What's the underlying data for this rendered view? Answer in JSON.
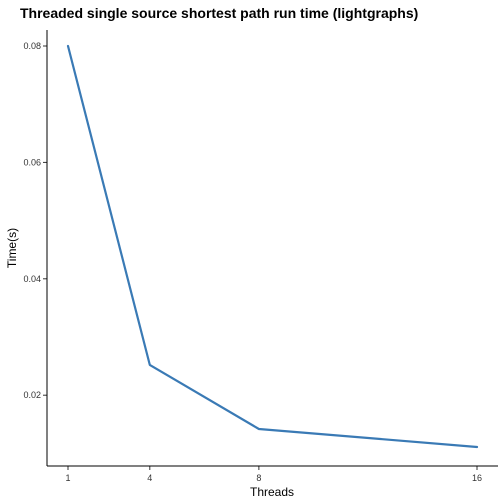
{
  "chart_data": {
    "type": "line",
    "title": "Threaded single source shortest path run time (lightgraphs)",
    "xlabel": "Threads",
    "ylabel": "Time(s)",
    "x": [
      1,
      4,
      8,
      16
    ],
    "x_ticks": [
      1,
      4,
      8,
      16
    ],
    "y_ticks": [
      0.02,
      0.04,
      0.06,
      0.08
    ],
    "y_tick_labels": [
      "0.02",
      "0.04",
      "0.06",
      "0.08"
    ],
    "xlim": [
      1,
      16
    ],
    "ylim": [
      0.0111,
      0.08
    ],
    "series": [
      {
        "values": [
          0.08,
          0.0252,
          0.0142,
          0.0111
        ],
        "color": "#3a7ab5"
      }
    ],
    "grid": false,
    "legend": "none"
  }
}
